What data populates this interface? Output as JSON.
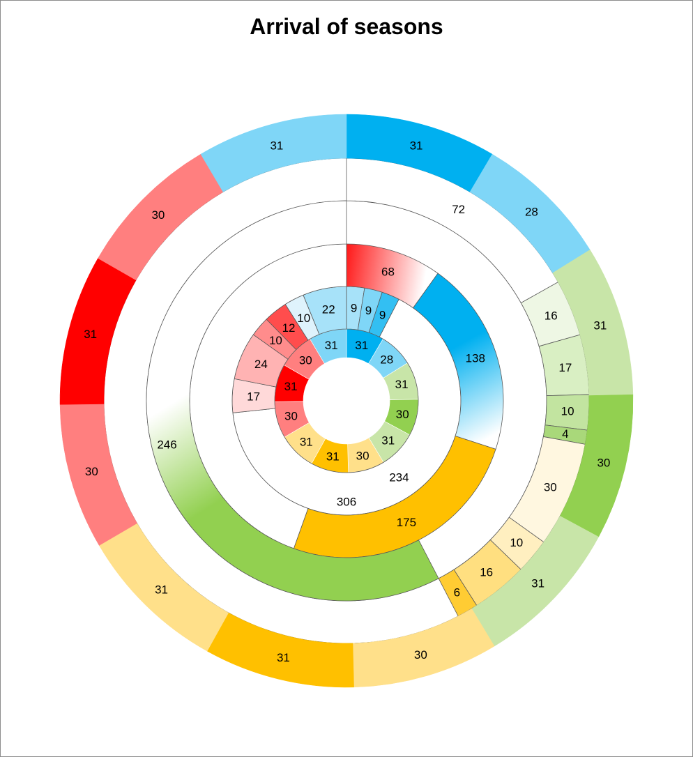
{
  "chart_data": {
    "type": "donut",
    "title": "Arrival of seasons",
    "rings": [
      {
        "name": "months_inner",
        "segments": [
          {
            "value": 31,
            "color": "#00b0f0"
          },
          {
            "value": 28,
            "color": "#7fd6f7"
          },
          {
            "value": 31,
            "color": "#c8e5a8"
          },
          {
            "value": 30,
            "color": "#92d050"
          },
          {
            "value": 31,
            "color": "#c8e5a8"
          },
          {
            "value": 30,
            "color": "#ffe08a"
          },
          {
            "value": 31,
            "color": "#ffc000"
          },
          {
            "value": 31,
            "color": "#ffe08a"
          },
          {
            "value": 30,
            "color": "#ff7f7f"
          },
          {
            "value": 31,
            "color": "#ff0000"
          },
          {
            "value": 30,
            "color": "#ff7f7f"
          },
          {
            "value": 31,
            "color": "#7fd6f7"
          }
        ]
      },
      {
        "name": "cold_detail_inner",
        "segments": [
          {
            "value": 9,
            "color": "#a7e2f9"
          },
          {
            "value": 9,
            "color": "#7fd6f7"
          },
          {
            "value": 9,
            "color": "#33bff2"
          },
          {
            "value": 234,
            "color": "none"
          },
          {
            "value": 17,
            "color": "#ffd9d9"
          },
          {
            "value": 24,
            "color": "#ffb3b3"
          },
          {
            "value": 10,
            "color": "#ff8c8c"
          },
          {
            "value": 12,
            "color": "#ff4d4d"
          },
          {
            "value": 10,
            "color": "#dff3fc"
          },
          {
            "value": 22,
            "color": "#a7e2f9"
          }
        ]
      },
      {
        "name": "season_arcs",
        "segments": [
          {
            "value": 68,
            "color": "#ff0000"
          },
          {
            "value": 138,
            "color": "#00b0f0"
          },
          {
            "value": 175,
            "color": "#ffc000"
          },
          {
            "value": 306,
            "color": "none"
          }
        ]
      },
      {
        "name": "warm_detail",
        "segments": [
          {
            "value": 72,
            "color": "none"
          },
          {
            "value": 16,
            "color": "#eef7e4"
          },
          {
            "value": 17,
            "color": "#d9efc3"
          },
          {
            "value": 10,
            "color": "#c2e4a0"
          },
          {
            "value": 4,
            "color": "#a9d87a"
          },
          {
            "value": 30,
            "color": "#fff7e0"
          },
          {
            "value": 10,
            "color": "#ffefc0"
          },
          {
            "value": 16,
            "color": "#ffdf80"
          },
          {
            "value": 6,
            "color": "#ffcc33"
          },
          {
            "value": 246,
            "color": "#92d050"
          }
        ]
      },
      {
        "name": "months_outer",
        "segments": [
          {
            "value": 31,
            "color": "#00b0f0"
          },
          {
            "value": 28,
            "color": "#7fd6f7"
          },
          {
            "value": 31,
            "color": "#c8e5a8"
          },
          {
            "value": 30,
            "color": "#92d050"
          },
          {
            "value": 31,
            "color": "#c8e5a8"
          },
          {
            "value": 30,
            "color": "#ffe08a"
          },
          {
            "value": 31,
            "color": "#ffc000"
          },
          {
            "value": 31,
            "color": "#ffe08a"
          },
          {
            "value": 30,
            "color": "#ff7f7f"
          },
          {
            "value": 31,
            "color": "#ff0000"
          },
          {
            "value": 30,
            "color": "#ff7f7f"
          },
          {
            "value": 31,
            "color": "#7fd6f7"
          }
        ]
      }
    ]
  }
}
